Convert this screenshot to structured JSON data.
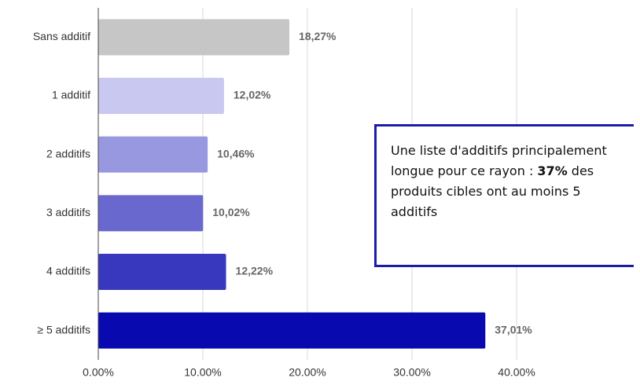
{
  "chart_data": {
    "type": "barh",
    "categories": [
      "Sans additif",
      "1 additif",
      "2 additifs",
      "3 additifs",
      "4 additifs",
      "≥ 5 additifs"
    ],
    "values": [
      18.27,
      12.02,
      10.46,
      10.02,
      12.22,
      37.01
    ],
    "value_labels": [
      "18,27%",
      "12,02%",
      "10,46%",
      "10,02%",
      "12,22%",
      "37,01%"
    ],
    "colors": [
      "#c6c6c6",
      "#c8c8f0",
      "#9898e0",
      "#6868cf",
      "#3838bf",
      "#0909b0"
    ],
    "xlim": [
      0,
      51.8
    ],
    "xticks": [
      {
        "value": 0,
        "label": "0.00%"
      },
      {
        "value": 10,
        "label": "10.00%"
      },
      {
        "value": 20,
        "label": "20.00%"
      },
      {
        "value": 30,
        "label": "30.00%"
      },
      {
        "value": 40,
        "label": "40.00%"
      }
    ],
    "grid": true,
    "annotation": {
      "before": "Une liste d'additifs principalement longue pour ce rayon : ",
      "bold": "37%",
      "after": " des produits cibles ont au moins 5 additifs"
    }
  }
}
